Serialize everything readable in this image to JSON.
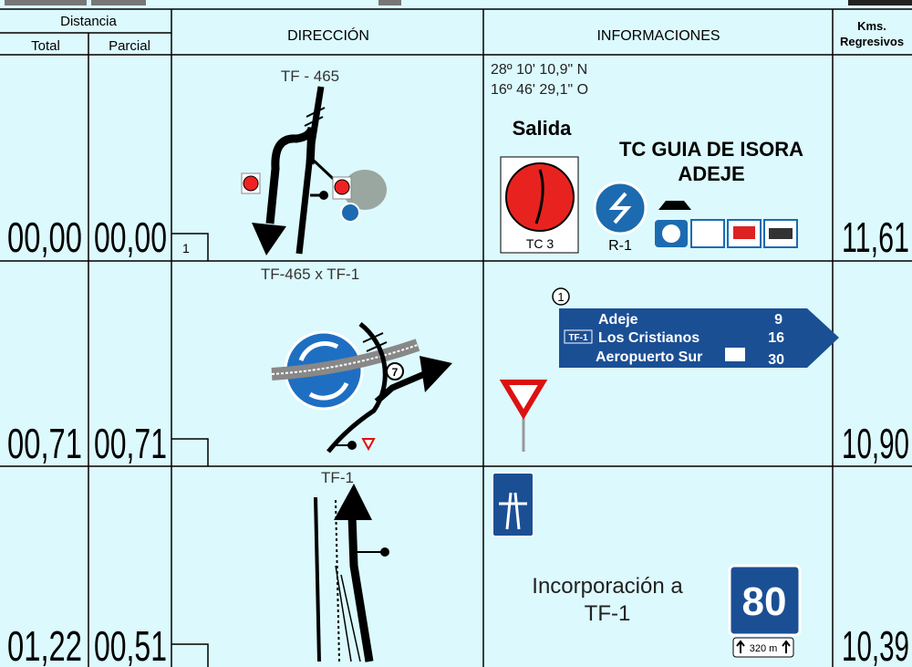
{
  "header": {
    "distancia": "Distancia",
    "total": "Total",
    "parcial": "Parcial",
    "direccion": "DIRECCIÓN",
    "informaciones": "INFORMACIONES",
    "kms": [
      "Kms.",
      "Regresivos"
    ]
  },
  "rows": [
    {
      "total": "00,00",
      "parcial": "00,00",
      "road": "TF - 465",
      "box": "1",
      "kms": "11,61",
      "info": {
        "coords": [
          "28º 10' 10,9\" N",
          "16º 46' 29,1\" O"
        ],
        "salida": "Salida",
        "destination": [
          "TC GUIA DE ISORA",
          "ADEJE"
        ],
        "signs": [
          "TC 3",
          "R-1"
        ]
      }
    },
    {
      "total": "00,71",
      "parcial": "00,71",
      "road": "TF-465 x TF-1",
      "exit": "7",
      "kms": "10,90",
      "info": {
        "marker": "1",
        "sign": [
          {
            "place": "Adeje",
            "km": "9"
          },
          {
            "road": "TF-1",
            "place": "Los Cristianos",
            "km": "16"
          },
          {
            "place": "Aeropuerto Sur",
            "km": "30"
          }
        ]
      }
    },
    {
      "total": "01,22",
      "parcial": "00,51",
      "road": "TF-1",
      "kms": "10,39",
      "info": {
        "text": [
          "Incorporación a",
          "TF-1"
        ],
        "speed": "80",
        "distance": "320 m"
      }
    }
  ]
}
